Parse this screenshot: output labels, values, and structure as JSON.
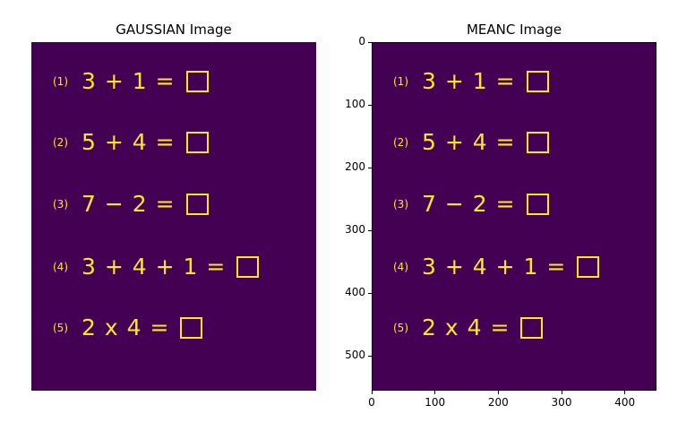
{
  "chart_data": [
    {
      "type": "heatmap",
      "title": "GAUSSIAN Image",
      "axes_visible": false,
      "colormap": "viridis",
      "background_color": "#440154",
      "foreground_color": "#fde725",
      "equations": [
        {
          "num": "(1)",
          "text": "3 + 1 ="
        },
        {
          "num": "(2)",
          "text": "5 + 4 ="
        },
        {
          "num": "(3)",
          "text": "7 − 2 ="
        },
        {
          "num": "(4)",
          "text": "3 + 4 + 1 ="
        },
        {
          "num": "(5)",
          "text": "2 x 4 ="
        }
      ]
    },
    {
      "type": "heatmap",
      "title": "MEANC Image",
      "axes_visible": true,
      "colormap": "viridis",
      "background_color": "#440154",
      "foreground_color": "#fde725",
      "xlim": [
        0,
        450
      ],
      "ylim": [
        555,
        0
      ],
      "xticks": [
        0,
        100,
        200,
        300,
        400
      ],
      "yticks": [
        0,
        100,
        200,
        300,
        400,
        500
      ],
      "equations": [
        {
          "num": "(1)",
          "text": "3 + 1 ="
        },
        {
          "num": "(2)",
          "text": "5 + 4 ="
        },
        {
          "num": "(3)",
          "text": "7 − 2 ="
        },
        {
          "num": "(4)",
          "text": "3 + 4 + 1 ="
        },
        {
          "num": "(5)",
          "text": "2 x 4 ="
        }
      ]
    }
  ]
}
